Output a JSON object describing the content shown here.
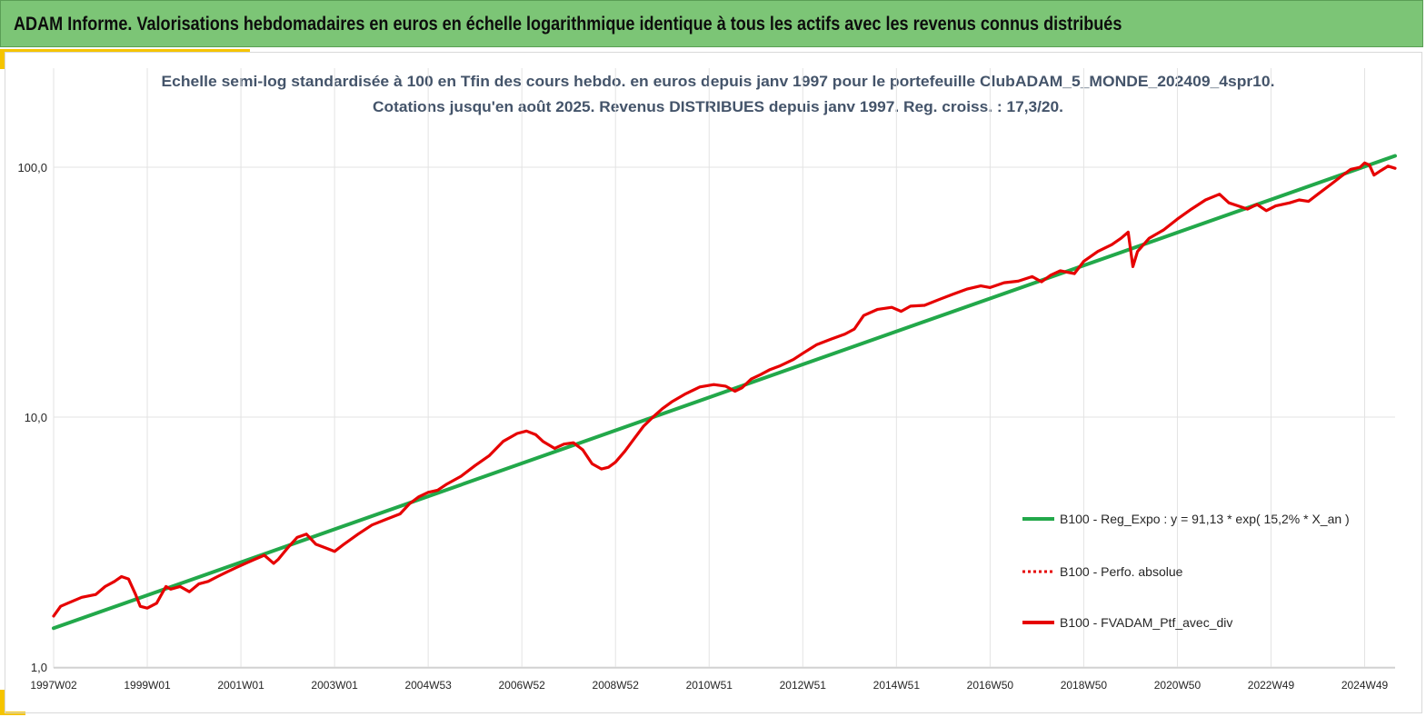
{
  "banner": {
    "title": "ADAM Informe. Valorisations hebdomadaires en euros en échelle logarithmique identique à tous les actifs avec les revenus connus distribués"
  },
  "colors": {
    "banner_bg": "#7cc576",
    "accent_yellow": "#f5c400",
    "series_regression": "#22a84a",
    "series_portfolio": "#e60000",
    "title_text": "#44546a"
  },
  "chart_data": {
    "type": "line",
    "title_lines": [
      "Echelle semi-log standardisée à 100 en Tfin des cours hebdo. en euros depuis janv 1997 pour le portefeuille ClubADAM_5_MONDE_202409_4spr10.",
      "Cotations jusqu'en août 2025. Revenus DISTRIBUES depuis janv 1997. Reg. croiss. : 17,3/20."
    ],
    "x_axis": {
      "start": 1997.0,
      "end": 2025.65,
      "tick_labels": [
        "1997W02",
        "1999W01",
        "2001W01",
        "2003W01",
        "2004W53",
        "2006W52",
        "2008W52",
        "2010W51",
        "2012W51",
        "2014W51",
        "2016W50",
        "2018W50",
        "2020W50",
        "2022W49",
        "2024W49"
      ],
      "tick_positions": [
        1997.0,
        1999.0,
        2001.0,
        2003.0,
        2005.0,
        2007.0,
        2009.0,
        2011.0,
        2013.0,
        2015.0,
        2017.0,
        2019.0,
        2021.0,
        2023.0,
        2025.0
      ]
    },
    "y_axis": {
      "scale": "log",
      "range": [
        1,
        200
      ],
      "tick_values": [
        1,
        10,
        100
      ],
      "tick_labels": [
        "1,0",
        "10,0",
        "100,0"
      ]
    },
    "grid": true,
    "legend_position": "right",
    "series": [
      {
        "name": "B100 - Reg_Expo : y = 91,13 * exp( 15,2% *  X_an )",
        "style": "solid",
        "color": "#22a84a",
        "x": [
          1997.0,
          2025.65
        ],
        "y": [
          1.43,
          111.0
        ]
      },
      {
        "name": "B100 - Perfo. absolue",
        "style": "dotted",
        "color": "#e60000",
        "x": [],
        "y": []
      },
      {
        "name": "B100 - FVADAM_Ptf_avec_div",
        "style": "solid",
        "color": "#e60000",
        "x": [
          1997.0,
          1997.15,
          1997.3,
          1997.6,
          1997.9,
          1998.1,
          1998.3,
          1998.45,
          1998.6,
          1998.75,
          1998.85,
          1999.0,
          1999.2,
          1999.4,
          1999.5,
          1999.7,
          1999.9,
          2000.1,
          2000.3,
          2000.5,
          2000.7,
          2000.9,
          2001.1,
          2001.3,
          2001.5,
          2001.7,
          2001.8,
          2002.0,
          2002.2,
          2002.4,
          2002.6,
          2002.8,
          2003.0,
          2003.2,
          2003.5,
          2003.8,
          2004.1,
          2004.4,
          2004.6,
          2004.8,
          2005.0,
          2005.2,
          2005.4,
          2005.7,
          2006.0,
          2006.3,
          2006.6,
          2006.9,
          2007.1,
          2007.3,
          2007.45,
          2007.7,
          2007.9,
          2008.1,
          2008.3,
          2008.5,
          2008.7,
          2008.85,
          2009.0,
          2009.2,
          2009.4,
          2009.6,
          2009.8,
          2010.0,
          2010.2,
          2010.5,
          2010.8,
          2011.1,
          2011.35,
          2011.55,
          2011.7,
          2011.9,
          2012.1,
          2012.3,
          2012.5,
          2012.8,
          2013.0,
          2013.3,
          2013.6,
          2013.9,
          2014.1,
          2014.3,
          2014.6,
          2014.9,
          2015.1,
          2015.3,
          2015.6,
          2015.9,
          2016.2,
          2016.5,
          2016.8,
          2017.0,
          2017.3,
          2017.6,
          2017.9,
          2018.1,
          2018.3,
          2018.5,
          2018.8,
          2019.0,
          2019.3,
          2019.6,
          2019.8,
          2019.95,
          2020.05,
          2020.15,
          2020.4,
          2020.7,
          2021.0,
          2021.3,
          2021.6,
          2021.9,
          2022.1,
          2022.3,
          2022.5,
          2022.7,
          2022.9,
          2023.1,
          2023.4,
          2023.6,
          2023.8,
          2024.0,
          2024.3,
          2024.5,
          2024.7,
          2024.9,
          2025.0,
          2025.1,
          2025.2,
          2025.35,
          2025.5,
          2025.65
        ],
        "y": [
          1.6,
          1.75,
          1.8,
          1.9,
          1.95,
          2.1,
          2.2,
          2.3,
          2.25,
          1.95,
          1.75,
          1.72,
          1.8,
          2.1,
          2.05,
          2.1,
          2.0,
          2.15,
          2.2,
          2.3,
          2.4,
          2.5,
          2.6,
          2.7,
          2.8,
          2.6,
          2.7,
          3.0,
          3.3,
          3.4,
          3.1,
          3.0,
          2.9,
          3.1,
          3.4,
          3.7,
          3.9,
          4.1,
          4.5,
          4.8,
          5.0,
          5.1,
          5.4,
          5.8,
          6.4,
          7.0,
          8.0,
          8.6,
          8.8,
          8.5,
          8.0,
          7.5,
          7.8,
          7.9,
          7.4,
          6.5,
          6.2,
          6.3,
          6.6,
          7.3,
          8.2,
          9.2,
          10.0,
          10.8,
          11.5,
          12.4,
          13.2,
          13.5,
          13.3,
          12.7,
          13.1,
          14.2,
          14.8,
          15.5,
          16.0,
          17.0,
          18.0,
          19.5,
          20.5,
          21.5,
          22.5,
          25.5,
          27.0,
          27.5,
          26.5,
          27.8,
          28.0,
          29.5,
          31.0,
          32.5,
          33.5,
          33.0,
          34.5,
          35.0,
          36.5,
          34.8,
          37.0,
          38.5,
          37.5,
          42.0,
          46.0,
          49.0,
          52.0,
          55.0,
          40.0,
          46.0,
          52.0,
          56.0,
          62.0,
          68.0,
          74.0,
          78.0,
          72.0,
          70.0,
          68.0,
          71.0,
          67.0,
          70.0,
          72.0,
          74.0,
          73.0,
          78.0,
          86.0,
          92.0,
          98.0,
          100.0,
          104.0,
          102.0,
          93.0,
          97.0,
          101.0,
          99.0
        ]
      }
    ]
  }
}
